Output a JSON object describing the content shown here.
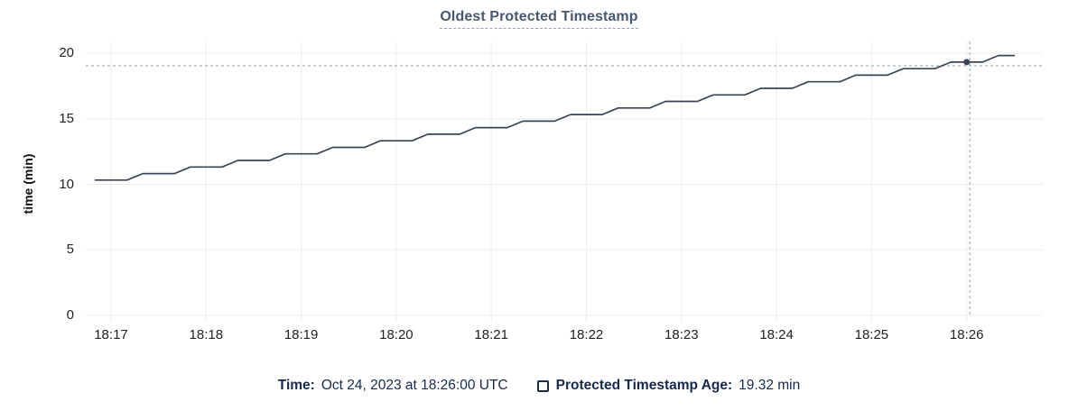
{
  "title": "Oldest Protected Timestamp",
  "y_axis": {
    "label": "time (min)",
    "ticks": [
      0,
      5,
      10,
      15,
      20
    ]
  },
  "x_axis": {
    "ticks": [
      "18:17",
      "18:18",
      "18:19",
      "18:20",
      "18:21",
      "18:22",
      "18:23",
      "18:24",
      "18:25",
      "18:26"
    ]
  },
  "legend": {
    "time_label": "Time:",
    "time_value": "Oct 24, 2023 at 18:26:00 UTC",
    "series_label": "Protected Timestamp Age:",
    "series_value": "19.32 min"
  },
  "colors": {
    "line": "#394455",
    "grid": "#ececec",
    "crosshair": "#9db0c2",
    "title": "#475872",
    "title_underline": "#93a1b8",
    "legend_text": "#16294d",
    "tick_text": "#222222",
    "dot": "#394455"
  },
  "chart_data": {
    "type": "line",
    "title": "Oldest Protected Timestamp",
    "xlabel": "",
    "ylabel": "time (min)",
    "ylim": [
      0,
      20
    ],
    "x_ticks": [
      "18:17",
      "18:18",
      "18:19",
      "18:20",
      "18:21",
      "18:22",
      "18:23",
      "18:24",
      "18:25",
      "18:26"
    ],
    "grid": true,
    "legend_position": "bottom",
    "series": [
      {
        "name": "Protected Timestamp Age",
        "unit": "min",
        "points": [
          [
            "18:16:50",
            10.32
          ],
          [
            "18:17:00",
            10.32
          ],
          [
            "18:17:10",
            10.32
          ],
          [
            "18:17:20",
            10.82
          ],
          [
            "18:17:30",
            10.82
          ],
          [
            "18:17:40",
            10.82
          ],
          [
            "18:17:50",
            11.32
          ],
          [
            "18:18:00",
            11.32
          ],
          [
            "18:18:10",
            11.32
          ],
          [
            "18:18:20",
            11.82
          ],
          [
            "18:18:30",
            11.82
          ],
          [
            "18:18:40",
            11.82
          ],
          [
            "18:18:50",
            12.32
          ],
          [
            "18:19:00",
            12.32
          ],
          [
            "18:19:10",
            12.32
          ],
          [
            "18:19:20",
            12.82
          ],
          [
            "18:19:30",
            12.82
          ],
          [
            "18:19:40",
            12.82
          ],
          [
            "18:19:50",
            13.32
          ],
          [
            "18:20:00",
            13.32
          ],
          [
            "18:20:10",
            13.32
          ],
          [
            "18:20:20",
            13.82
          ],
          [
            "18:20:30",
            13.82
          ],
          [
            "18:20:40",
            13.82
          ],
          [
            "18:20:50",
            14.32
          ],
          [
            "18:21:00",
            14.32
          ],
          [
            "18:21:10",
            14.32
          ],
          [
            "18:21:20",
            14.82
          ],
          [
            "18:21:30",
            14.82
          ],
          [
            "18:21:40",
            14.82
          ],
          [
            "18:21:50",
            15.32
          ],
          [
            "18:22:00",
            15.32
          ],
          [
            "18:22:10",
            15.32
          ],
          [
            "18:22:20",
            15.82
          ],
          [
            "18:22:30",
            15.82
          ],
          [
            "18:22:40",
            15.82
          ],
          [
            "18:22:50",
            16.32
          ],
          [
            "18:23:00",
            16.32
          ],
          [
            "18:23:10",
            16.32
          ],
          [
            "18:23:20",
            16.82
          ],
          [
            "18:23:30",
            16.82
          ],
          [
            "18:23:40",
            16.82
          ],
          [
            "18:23:50",
            17.32
          ],
          [
            "18:24:00",
            17.32
          ],
          [
            "18:24:10",
            17.32
          ],
          [
            "18:24:20",
            17.82
          ],
          [
            "18:24:30",
            17.82
          ],
          [
            "18:24:40",
            17.82
          ],
          [
            "18:24:50",
            18.32
          ],
          [
            "18:25:00",
            18.32
          ],
          [
            "18:25:10",
            18.32
          ],
          [
            "18:25:20",
            18.82
          ],
          [
            "18:25:30",
            18.82
          ],
          [
            "18:25:40",
            18.82
          ],
          [
            "18:25:50",
            19.32
          ],
          [
            "18:26:00",
            19.32
          ],
          [
            "18:26:10",
            19.32
          ],
          [
            "18:26:20",
            19.82
          ],
          [
            "18:26:30",
            19.82
          ]
        ]
      }
    ],
    "hover_point": {
      "time": "18:26:00",
      "value": 19.32
    },
    "crosshair": {
      "time": "18:26:02",
      "value": 19.04
    }
  }
}
